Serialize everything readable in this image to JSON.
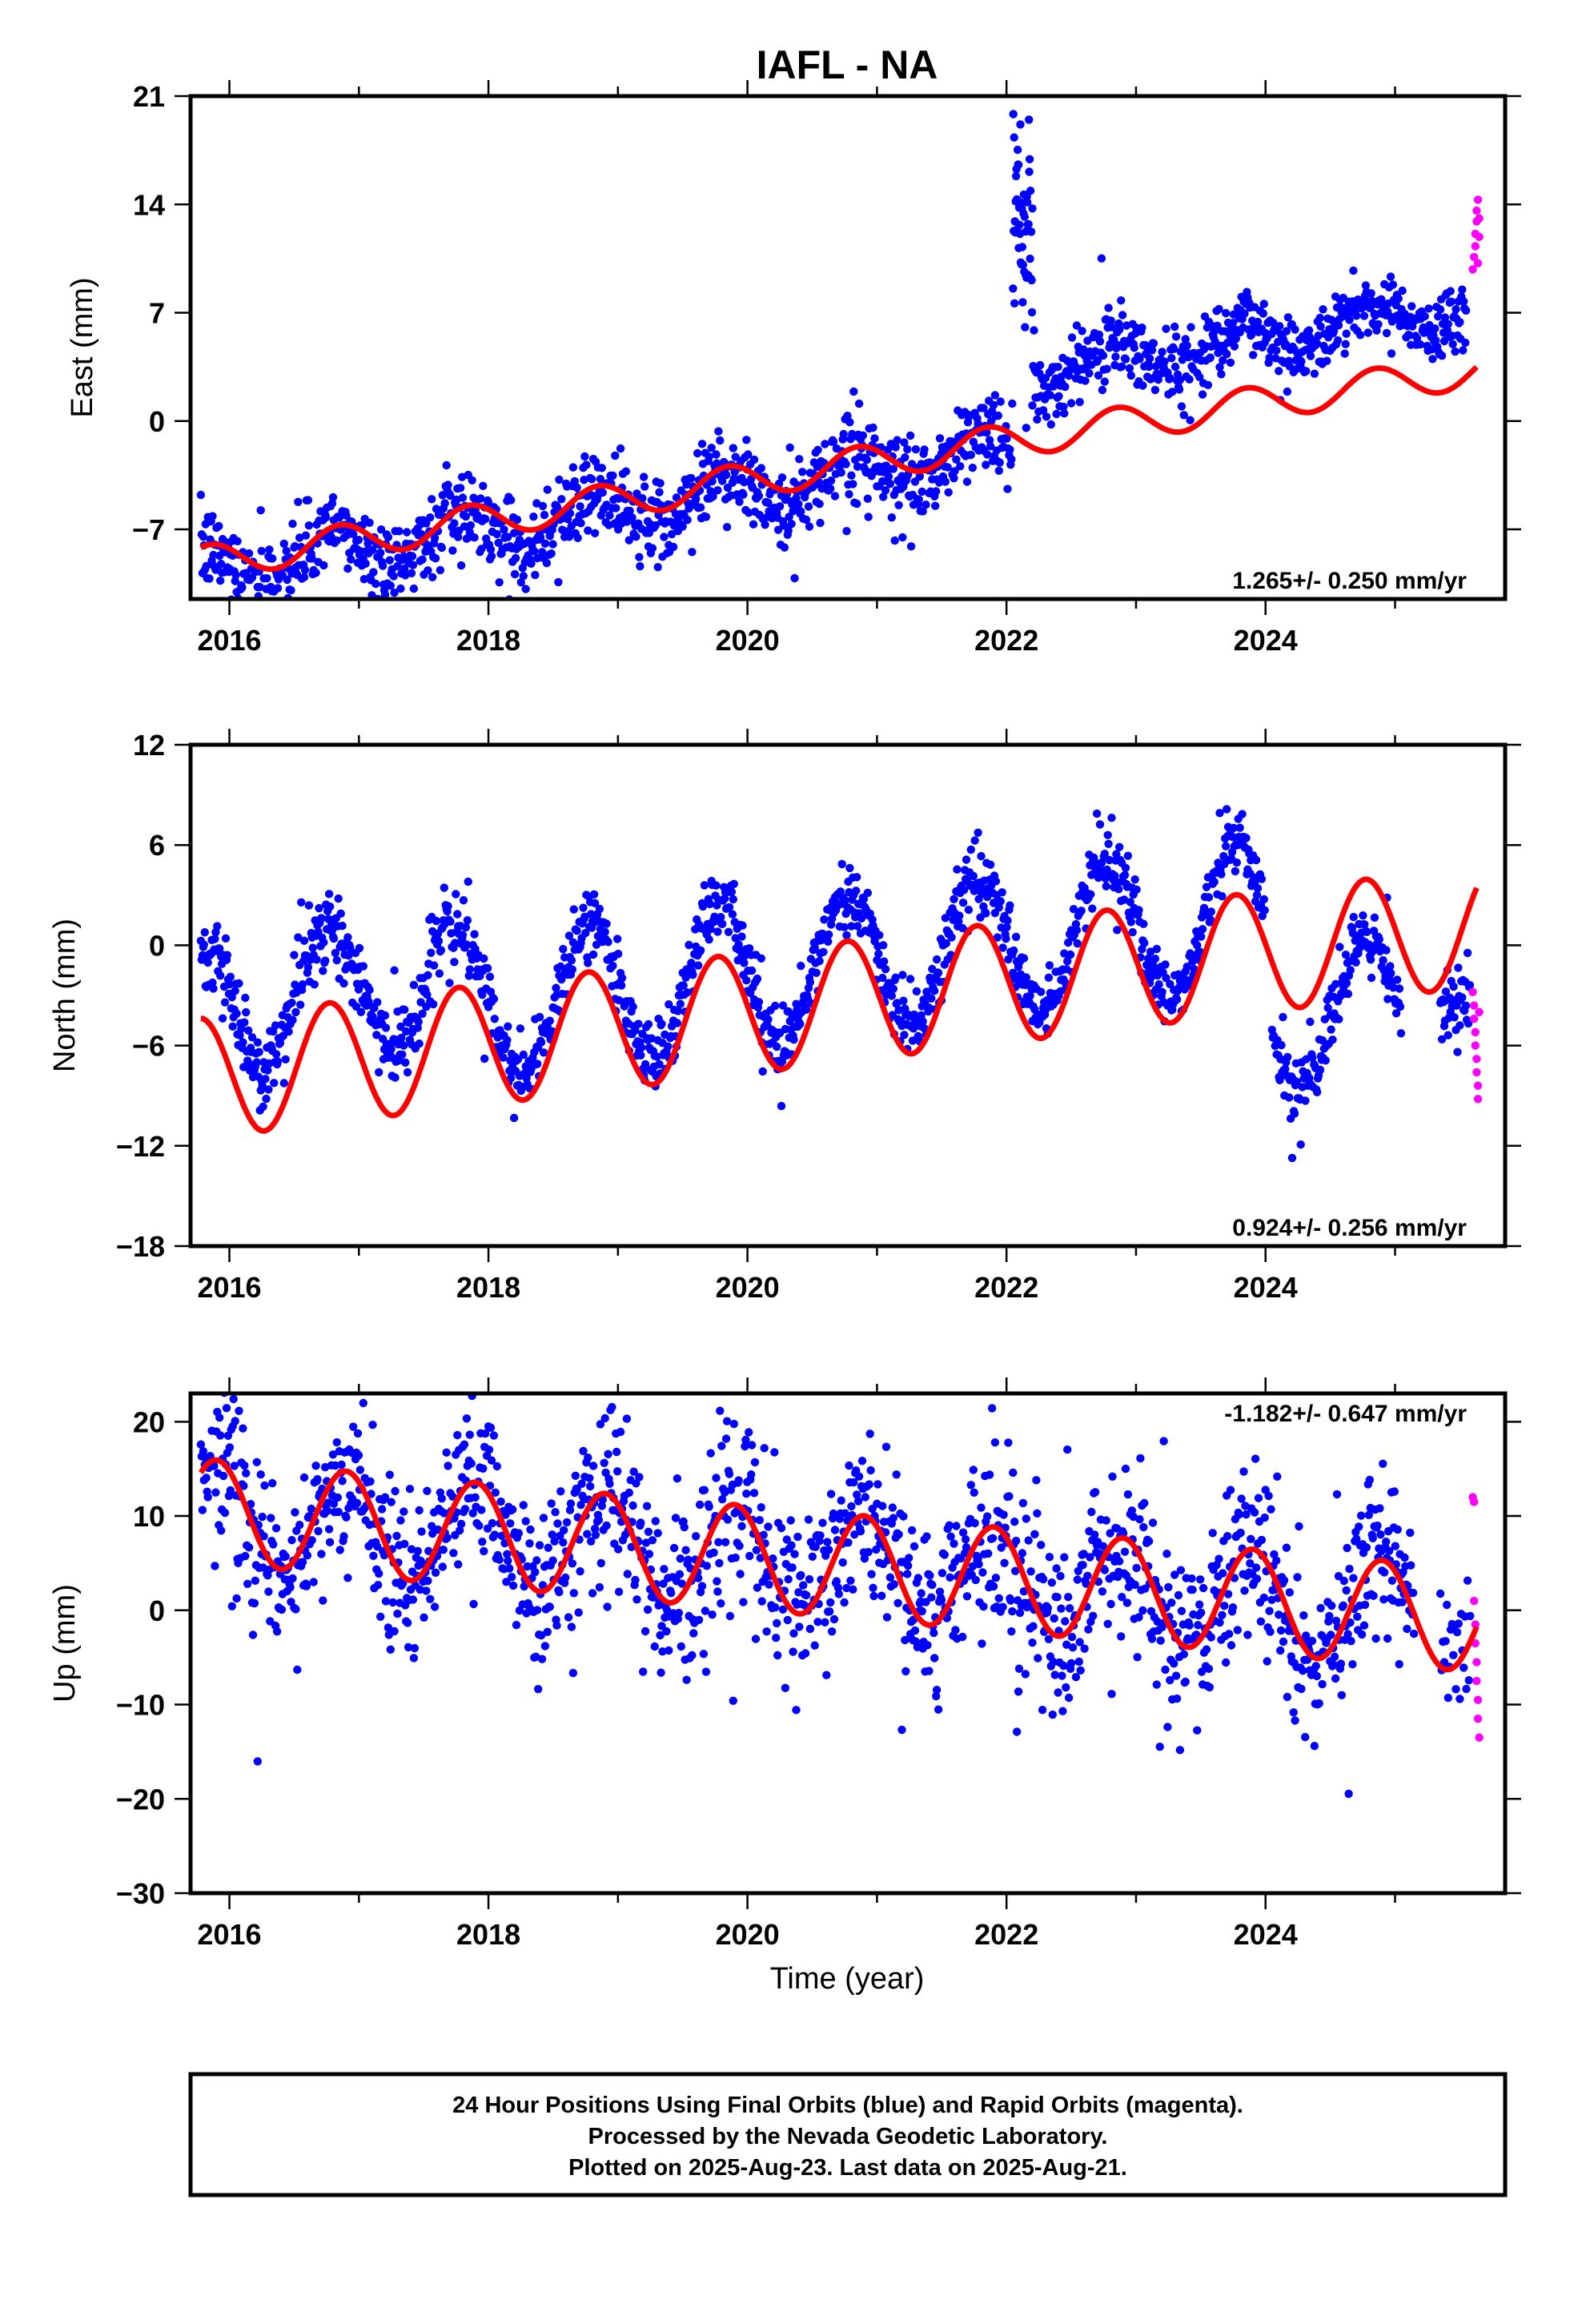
{
  "title": "IAFL - NA",
  "xlabel": "Time (year)",
  "footer": {
    "line1": "24 Hour Positions Using Final Orbits (blue) and Rapid Orbits (magenta).",
    "line2": "Processed by the Nevada Geodetic Laboratory.",
    "line3": "Plotted on 2025-Aug-23. Last data on 2025-Aug-21."
  },
  "colors": {
    "final": "#0000ff",
    "rapid": "#ff00ff",
    "model": "#ff0000",
    "frame": "#000000"
  },
  "chart_data": [
    {
      "type": "scatter",
      "ylabel": "East (mm)",
      "rate": "1.265+/- 0.250 mm/yr",
      "xlim": [
        2015.7,
        2025.85
      ],
      "ylim": [
        -11.5,
        21
      ],
      "yticks": [
        -7,
        0,
        7,
        14,
        21
      ],
      "xticks": [
        2016,
        2018,
        2020,
        2022,
        2024
      ],
      "series": [
        {
          "role": "final-orbits",
          "color": "#0000ff",
          "segments": [
            {
              "x0": 2015.78,
              "x1": 2022.05,
              "offset": -3.8,
              "trend": 1.265,
              "amp": 1.4,
              "phase": 0.55,
              "noise": 1.3,
              "step": 0.006
            },
            {
              "x0": 2022.05,
              "x1": 2022.2,
              "offset": 12.5,
              "trend": 0,
              "amp": 0,
              "phase": 0,
              "noise": 3.0,
              "step": 0.003
            },
            {
              "x0": 2022.2,
              "x1": 2025.55,
              "offset": 1.0,
              "trend": 1.265,
              "amp": 1.2,
              "phase": 0.55,
              "noise": 1.2,
              "step": 0.006
            }
          ]
        },
        {
          "role": "rapid-orbits",
          "color": "#ff00ff",
          "points": [
            [
              2025.6,
              9.8
            ],
            [
              2025.61,
              10.6
            ],
            [
              2025.62,
              11.3
            ],
            [
              2025.62,
              12.1
            ],
            [
              2025.63,
              12.9
            ],
            [
              2025.63,
              13.6
            ],
            [
              2025.64,
              14.3
            ],
            [
              2025.64,
              10.2
            ],
            [
              2025.65,
              11.9
            ],
            [
              2025.65,
              13.1
            ]
          ]
        }
      ],
      "model": {
        "offset": -3.2,
        "trend": 1.265,
        "amp": 1.1,
        "phase": 0.6,
        "x0": 2015.78,
        "x1": 2025.63
      }
    },
    {
      "type": "scatter",
      "ylabel": "North (mm)",
      "rate": "0.924+/- 0.256 mm/yr",
      "xlim": [
        2015.7,
        2025.85
      ],
      "ylim": [
        -18,
        12
      ],
      "yticks": [
        -18,
        -12,
        -6,
        0,
        6,
        12
      ],
      "xticks": [
        2016,
        2018,
        2020,
        2022,
        2024
      ],
      "series": [
        {
          "role": "final-orbits",
          "color": "#0000ff",
          "segments": [
            {
              "x0": 2015.78,
              "x1": 2017.7,
              "offset": 0.7,
              "trend": 0.924,
              "amp": 3.8,
              "phase": 0.52,
              "noise": 1.2,
              "step": 0.006
            },
            {
              "x0": 2017.7,
              "x1": 2024.0,
              "offset": -1.3,
              "trend": 0.924,
              "amp": 4.3,
              "phase": 0.52,
              "noise": 1.0,
              "step": 0.006
            },
            {
              "x0": 2024.05,
              "x1": 2025.05,
              "offset": -8.0,
              "trend": 0.924,
              "amp": 4.2,
              "phase": 0.52,
              "noise": 1.0,
              "step": 0.006
            },
            {
              "x0": 2025.35,
              "x1": 2025.58,
              "offset": -3.5,
              "trend": 0,
              "amp": 0,
              "phase": 0,
              "noise": 1.2,
              "step": 0.006
            }
          ]
        },
        {
          "role": "rapid-orbits",
          "color": "#ff00ff",
          "points": [
            [
              2025.6,
              -2.8
            ],
            [
              2025.61,
              -3.6
            ],
            [
              2025.61,
              -4.4
            ],
            [
              2025.62,
              -5.2
            ],
            [
              2025.62,
              -6.0
            ],
            [
              2025.63,
              -6.8
            ],
            [
              2025.63,
              -7.6
            ],
            [
              2025.64,
              -8.4
            ],
            [
              2025.64,
              -9.2
            ],
            [
              2025.65,
              -4.0
            ]
          ]
        }
      ],
      "model": {
        "offset": -3.6,
        "trend": 0.924,
        "amp": 3.6,
        "phase": 0.52,
        "x0": 2015.78,
        "x1": 2025.63
      }
    },
    {
      "type": "scatter",
      "ylabel": "Up (mm)",
      "rate": "-1.182+/- 0.647 mm/yr",
      "xlim": [
        2015.7,
        2025.85
      ],
      "ylim": [
        -30,
        23
      ],
      "yticks": [
        -30,
        -20,
        -10,
        0,
        10,
        20
      ],
      "xticks": [
        2016,
        2018,
        2020,
        2022,
        2024
      ],
      "series": [
        {
          "role": "final-orbits",
          "color": "#0000ff",
          "segments": [
            {
              "x0": 2015.78,
              "x1": 2025.15,
              "offset": 5.0,
              "trend": -1.182,
              "amp": 5.5,
              "phase": 0.65,
              "noise": 4.5,
              "step": 0.006
            },
            {
              "x0": 2025.35,
              "x1": 2025.58,
              "offset": -5.0,
              "trend": 0,
              "amp": 0,
              "phase": 0,
              "noise": 4.0,
              "step": 0.01
            }
          ]
        },
        {
          "role": "rapid-orbits",
          "color": "#ff00ff",
          "points": [
            [
              2025.6,
              12.0
            ],
            [
              2025.61,
              11.5
            ],
            [
              2025.61,
              1.0
            ],
            [
              2025.62,
              -1.5
            ],
            [
              2025.62,
              -3.5
            ],
            [
              2025.63,
              -5.5
            ],
            [
              2025.63,
              -7.5
            ],
            [
              2025.64,
              -9.5
            ],
            [
              2025.64,
              -11.5
            ],
            [
              2025.65,
              -13.5
            ]
          ]
        }
      ],
      "model": {
        "offset": 5.0,
        "trend": -1.182,
        "amp": 5.5,
        "phase": 0.65,
        "x0": 2015.78,
        "x1": 2025.63
      }
    }
  ]
}
